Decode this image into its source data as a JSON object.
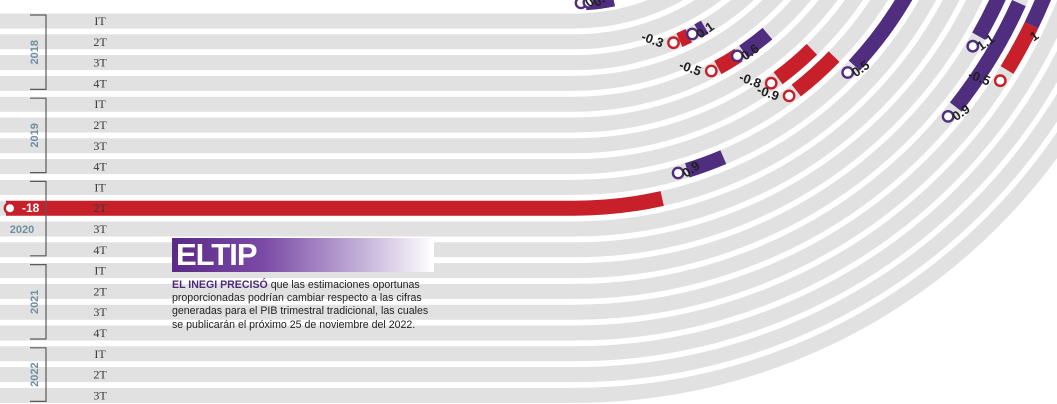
{
  "chart_data": {
    "type": "bar",
    "quarters": [
      "IT",
      "2T",
      "3T",
      "4T",
      "IT",
      "2T",
      "3T",
      "4T",
      "IT",
      "2T",
      "3T",
      "4T",
      "IT",
      "2T",
      "3T",
      "4T",
      "IT",
      "2T",
      "3T"
    ],
    "years": [
      {
        "label": "2018",
        "start": 0,
        "end": 3
      },
      {
        "label": "2019",
        "start": 4,
        "end": 7
      },
      {
        "label": "2020",
        "start": 8,
        "end": 11
      },
      {
        "label": "2021",
        "start": 12,
        "end": 15
      },
      {
        "label": "2022",
        "start": 16,
        "end": 18
      }
    ],
    "values": [
      {
        "label": "0",
        "row": -1
      },
      {
        "label": "0.5",
        "row": -1
      },
      {
        "label": "-0.3",
        "row": 2
      },
      {
        "label": "0.1",
        "row": 2
      },
      {
        "label": "-0.5",
        "row": 4
      },
      {
        "label": "0.6",
        "row": 4
      },
      {
        "label": "-0.8",
        "row": 6
      },
      {
        "label": "-0.9",
        "row": 7
      },
      {
        "label": "0.5",
        "row": 8
      },
      {
        "label": "0.9",
        "row": 8
      },
      {
        "label": "-18",
        "row": 9
      },
      {
        "label": "0.3",
        "row": 11
      },
      {
        "label": "1.1",
        "row": 12
      },
      {
        "label": "0.9",
        "row": 13
      },
      {
        "label": "1",
        "row": 14
      },
      {
        "label": "-0.5",
        "row": 14
      }
    ],
    "colors": {
      "negative": "#c8202a",
      "positive": "#4f2d7f",
      "track": "#e1e1e1"
    }
  },
  "tip": {
    "title": "ELTIP",
    "lead": "EL INEGI PRECISÓ",
    "body": " que las estimaciones oportunas proporcionadas podrían cambiar respecto a las cifras generadas para el PIB trimestral tradicional, las cuales se publicarán el próximo 25 de noviembre del 2022."
  }
}
